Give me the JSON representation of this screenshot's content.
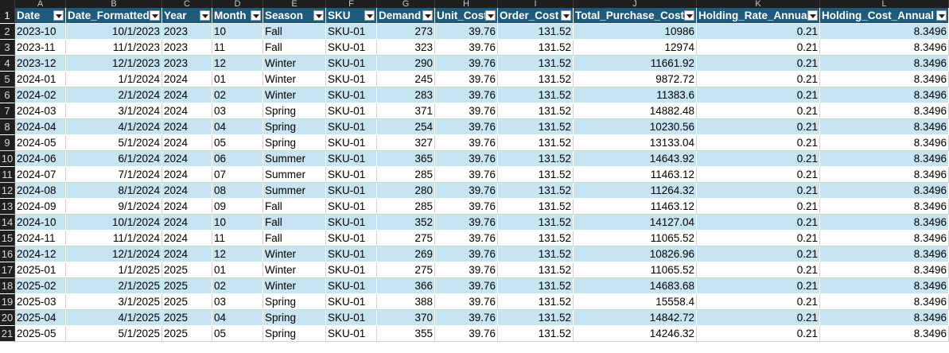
{
  "column_letters": [
    "A",
    "B",
    "C",
    "D",
    "E",
    "F",
    "G",
    "H",
    "I",
    "J",
    "K",
    "L"
  ],
  "headers": [
    "Date",
    "Date_Formatted",
    "Year",
    "Month",
    "Season",
    "SKU",
    "Demand",
    "Unit_Cost",
    "Order_Cost",
    "Total_Purchase_Cost",
    "Holding_Rate_Annual",
    "Holding_Cost_Annual"
  ],
  "colors": {
    "header_bg": "#1e5b7a",
    "band_bg": "#c6e4f2",
    "row_header_bg": "#1f1f1f"
  },
  "rows": [
    {
      "n": "2",
      "cells": [
        "2023-10",
        "10/1/2023",
        "2023",
        "10",
        "Fall",
        "SKU-01",
        "273",
        "39.76",
        "131.52",
        "10986",
        "0.21",
        "8.3496"
      ]
    },
    {
      "n": "3",
      "cells": [
        "2023-11",
        "11/1/2023",
        "2023",
        "11",
        "Fall",
        "SKU-01",
        "323",
        "39.76",
        "131.52",
        "12974",
        "0.21",
        "8.3496"
      ]
    },
    {
      "n": "4",
      "cells": [
        "2023-12",
        "12/1/2023",
        "2023",
        "12",
        "Winter",
        "SKU-01",
        "290",
        "39.76",
        "131.52",
        "11661.92",
        "0.21",
        "8.3496"
      ]
    },
    {
      "n": "5",
      "cells": [
        "2024-01",
        "1/1/2024",
        "2024",
        "01",
        "Winter",
        "SKU-01",
        "245",
        "39.76",
        "131.52",
        "9872.72",
        "0.21",
        "8.3496"
      ]
    },
    {
      "n": "6",
      "cells": [
        "2024-02",
        "2/1/2024",
        "2024",
        "02",
        "Winter",
        "SKU-01",
        "283",
        "39.76",
        "131.52",
        "11383.6",
        "0.21",
        "8.3496"
      ]
    },
    {
      "n": "7",
      "cells": [
        "2024-03",
        "3/1/2024",
        "2024",
        "03",
        "Spring",
        "SKU-01",
        "371",
        "39.76",
        "131.52",
        "14882.48",
        "0.21",
        "8.3496"
      ]
    },
    {
      "n": "8",
      "cells": [
        "2024-04",
        "4/1/2024",
        "2024",
        "04",
        "Spring",
        "SKU-01",
        "254",
        "39.76",
        "131.52",
        "10230.56",
        "0.21",
        "8.3496"
      ]
    },
    {
      "n": "9",
      "cells": [
        "2024-05",
        "5/1/2024",
        "2024",
        "05",
        "Spring",
        "SKU-01",
        "327",
        "39.76",
        "131.52",
        "13133.04",
        "0.21",
        "8.3496"
      ]
    },
    {
      "n": "10",
      "cells": [
        "2024-06",
        "6/1/2024",
        "2024",
        "06",
        "Summer",
        "SKU-01",
        "365",
        "39.76",
        "131.52",
        "14643.92",
        "0.21",
        "8.3496"
      ]
    },
    {
      "n": "11",
      "cells": [
        "2024-07",
        "7/1/2024",
        "2024",
        "07",
        "Summer",
        "SKU-01",
        "285",
        "39.76",
        "131.52",
        "11463.12",
        "0.21",
        "8.3496"
      ]
    },
    {
      "n": "12",
      "cells": [
        "2024-08",
        "8/1/2024",
        "2024",
        "08",
        "Summer",
        "SKU-01",
        "280",
        "39.76",
        "131.52",
        "11264.32",
        "0.21",
        "8.3496"
      ]
    },
    {
      "n": "13",
      "cells": [
        "2024-09",
        "9/1/2024",
        "2024",
        "09",
        "Fall",
        "SKU-01",
        "285",
        "39.76",
        "131.52",
        "11463.12",
        "0.21",
        "8.3496"
      ]
    },
    {
      "n": "14",
      "cells": [
        "2024-10",
        "10/1/2024",
        "2024",
        "10",
        "Fall",
        "SKU-01",
        "352",
        "39.76",
        "131.52",
        "14127.04",
        "0.21",
        "8.3496"
      ]
    },
    {
      "n": "15",
      "cells": [
        "2024-11",
        "11/1/2024",
        "2024",
        "11",
        "Fall",
        "SKU-01",
        "275",
        "39.76",
        "131.52",
        "11065.52",
        "0.21",
        "8.3496"
      ]
    },
    {
      "n": "16",
      "cells": [
        "2024-12",
        "12/1/2024",
        "2024",
        "12",
        "Winter",
        "SKU-01",
        "269",
        "39.76",
        "131.52",
        "10826.96",
        "0.21",
        "8.3496"
      ]
    },
    {
      "n": "17",
      "cells": [
        "2025-01",
        "1/1/2025",
        "2025",
        "01",
        "Winter",
        "SKU-01",
        "275",
        "39.76",
        "131.52",
        "11065.52",
        "0.21",
        "8.3496"
      ]
    },
    {
      "n": "18",
      "cells": [
        "2025-02",
        "2/1/2025",
        "2025",
        "02",
        "Winter",
        "SKU-01",
        "366",
        "39.76",
        "131.52",
        "14683.68",
        "0.21",
        "8.3496"
      ]
    },
    {
      "n": "19",
      "cells": [
        "2025-03",
        "3/1/2025",
        "2025",
        "03",
        "Spring",
        "SKU-01",
        "388",
        "39.76",
        "131.52",
        "15558.4",
        "0.21",
        "8.3496"
      ]
    },
    {
      "n": "20",
      "cells": [
        "2025-04",
        "4/1/2025",
        "2025",
        "04",
        "Spring",
        "SKU-01",
        "370",
        "39.76",
        "131.52",
        "14842.72",
        "0.21",
        "8.3496"
      ]
    },
    {
      "n": "21",
      "cells": [
        "2025-05",
        "5/1/2025",
        "2025",
        "05",
        "Spring",
        "SKU-01",
        "355",
        "39.76",
        "131.52",
        "14246.32",
        "0.21",
        "8.3496"
      ]
    }
  ]
}
